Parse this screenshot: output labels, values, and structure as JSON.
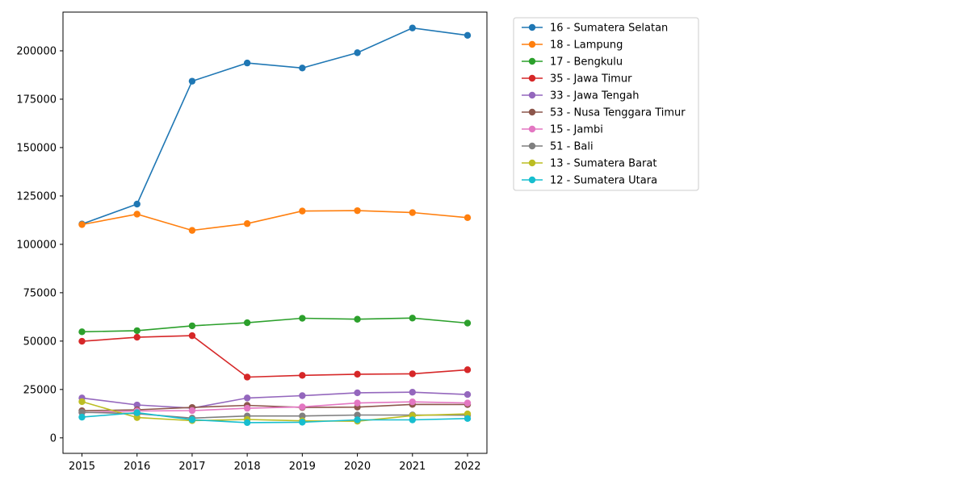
{
  "chart_data": {
    "type": "line",
    "title": "",
    "xlabel": "",
    "ylabel": "",
    "x": [
      "2015",
      "2016",
      "2017",
      "2018",
      "2019",
      "2020",
      "2021",
      "2022"
    ],
    "ylim": [
      -8000,
      220000
    ],
    "yticks": [
      0,
      25000,
      50000,
      75000,
      100000,
      125000,
      150000,
      175000,
      200000
    ],
    "grid": false,
    "legend_position": "outside-top-right",
    "series": [
      {
        "name": "16 - Sumatera Selatan",
        "color": "#1f77b4",
        "values": [
          110500,
          120800,
          184300,
          193700,
          191100,
          199000,
          211800,
          208000
        ]
      },
      {
        "name": "18 - Lampung",
        "color": "#ff7f0e",
        "values": [
          110200,
          115600,
          107200,
          110700,
          117200,
          117400,
          116400,
          113800
        ]
      },
      {
        "name": "17 - Bengkulu",
        "color": "#2ca02c",
        "values": [
          54800,
          55400,
          57900,
          59500,
          61800,
          61300,
          61900,
          59300
        ]
      },
      {
        "name": "35 - Jawa Timur",
        "color": "#d62728",
        "values": [
          49900,
          52000,
          52800,
          31400,
          32300,
          32900,
          33100,
          35200
        ]
      },
      {
        "name": "33 - Jawa Tengah",
        "color": "#9467bd",
        "values": [
          20600,
          17000,
          15400,
          20600,
          21800,
          23300,
          23600,
          22400
        ]
      },
      {
        "name": "53 - Nusa Tenggara Timur",
        "color": "#8c564b",
        "values": [
          14000,
          14500,
          15700,
          16800,
          15700,
          15900,
          17300,
          17200
        ]
      },
      {
        "name": "15 - Jambi",
        "color": "#e377c2",
        "values": [
          13000,
          13900,
          14100,
          15300,
          16000,
          18000,
          18600,
          18000
        ]
      },
      {
        "name": "51 - Bali",
        "color": "#7f7f7f",
        "values": [
          13200,
          12500,
          10200,
          11300,
          11300,
          11800,
          11800,
          11700
        ]
      },
      {
        "name": "13 - Sumatera Barat",
        "color": "#bcbd22",
        "values": [
          18700,
          10500,
          8900,
          9500,
          8800,
          8600,
          11500,
          12400
        ]
      },
      {
        "name": "12 - Sumatera Utara",
        "color": "#17becf",
        "values": [
          10700,
          13000,
          9400,
          7900,
          8100,
          9300,
          9300,
          10000
        ]
      }
    ]
  }
}
